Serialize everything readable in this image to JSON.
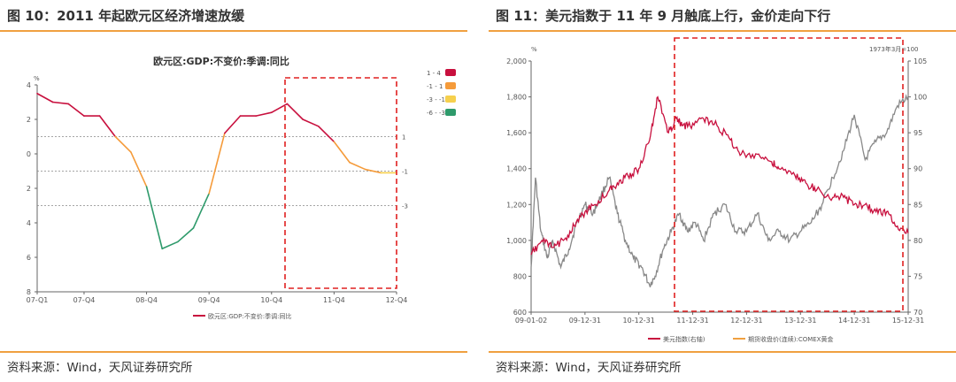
{
  "left": {
    "figure_title": "图 10：2011 年起欧元区经济增速放缓",
    "source": "资料来源：Wind，天风证券研究所",
    "chart_data": {
      "type": "line",
      "title": "欧元区:GDP:不变价:季调:同比",
      "ylabel": "%",
      "y_tick_labels": [
        "4",
        "2",
        "0",
        "2",
        "4",
        "6",
        "8"
      ],
      "ylim": [
        -8,
        4
      ],
      "x_tick_labels": [
        "07-Q1",
        "07-Q4",
        "08-Q4",
        "09-Q4",
        "10-Q4",
        "11-Q4",
        "12-Q4"
      ],
      "x_tick_quarters": [
        0,
        3,
        7,
        11,
        15,
        19,
        23
      ],
      "ref_lines": [
        {
          "value": 1,
          "label": "1"
        },
        {
          "value": -1,
          "label": "-1"
        },
        {
          "value": -3,
          "label": "-3"
        }
      ],
      "series": [
        {
          "name": "欧元区:GDP:不变价:季调:同比",
          "x": [
            0,
            1,
            2,
            3,
            4,
            5,
            6,
            7,
            8,
            9,
            10,
            11,
            12,
            13,
            14,
            15,
            16,
            17,
            18,
            19,
            20,
            21,
            22,
            23
          ],
          "values": [
            3.5,
            3.0,
            2.9,
            2.2,
            2.2,
            1.0,
            0.1,
            -1.9,
            -5.5,
            -5.1,
            -4.3,
            -2.3,
            1.2,
            2.2,
            2.2,
            2.4,
            2.9,
            2.0,
            1.6,
            0.7,
            -0.5,
            -0.9,
            -1.1,
            -1.1
          ]
        }
      ],
      "legend": [
        {
          "label": "1 - 4",
          "color": "#c8103e"
        },
        {
          "label": "-1 - 1",
          "color": "#f59b3a"
        },
        {
          "label": "-3 - -1",
          "color": "#f6d04d"
        },
        {
          "label": "-6 - -3",
          "color": "#2e9a6b"
        }
      ],
      "bottom_legend": "欧元区:GDP:不变价:季调:同比",
      "legend_position": "right"
    }
  },
  "right": {
    "figure_title": "图 11：美元指数于 11 年 9 月触底上行，金价走向下行",
    "source": "资料来源：Wind，天风证券研究所",
    "chart_data": {
      "type": "line",
      "ylabel_left": "%",
      "ylabel_right": "1973年3月=100",
      "y_left_ticks": [
        "2,000",
        "1,800",
        "1,600",
        "1,400",
        "1,200",
        "1,000",
        "800",
        "600"
      ],
      "y_right_ticks": [
        "105",
        "100",
        "95",
        "90",
        "85",
        "80",
        "75",
        "70"
      ],
      "ylim_left": [
        600,
        2000
      ],
      "ylim_right": [
        70,
        105
      ],
      "x_tick_labels": [
        "09-01-02",
        "09-12-31",
        "10-12-31",
        "11-12-31",
        "12-12-31",
        "13-12-31",
        "14-12-31",
        "15-12-31"
      ],
      "series": [
        {
          "name": "美元指数(右轴)",
          "color": "#c8103e",
          "axis": "right",
          "x": [
            2009.0,
            2009.2,
            2009.4,
            2009.6,
            2009.8,
            2010.0,
            2010.2,
            2010.45,
            2010.6,
            2010.8,
            2011.0,
            2011.2,
            2011.35,
            2011.55,
            2011.7,
            2011.8,
            2011.95,
            2012.2,
            2012.45,
            2012.7,
            2012.9,
            2013.2,
            2013.45,
            2013.6,
            2013.9,
            2014.1,
            2014.3,
            2014.6,
            2014.8,
            2015.0,
            2015.2,
            2015.4,
            2015.6,
            2015.8,
            2016.0
          ],
          "values": [
            78,
            80,
            79,
            80,
            82,
            84,
            85,
            87,
            88,
            89,
            90,
            94,
            100,
            95,
            97,
            96,
            96,
            97,
            96,
            94,
            92,
            92,
            91,
            90,
            89,
            88,
            87,
            86,
            86,
            85,
            85,
            84,
            84,
            82,
            81
          ]
        },
        {
          "name": "期货收盘价(连续):COMEX黄金",
          "color": "#888888",
          "axis": "left",
          "x": [
            2009.0,
            2009.08,
            2009.18,
            2009.3,
            2009.4,
            2009.55,
            2009.7,
            2009.85,
            2010.0,
            2010.15,
            2010.3,
            2010.45,
            2010.6,
            2010.75,
            2010.9,
            2011.05,
            2011.2,
            2011.3,
            2011.45,
            2011.6,
            2011.75,
            2011.9,
            2012.05,
            2012.2,
            2012.4,
            2012.6,
            2012.8,
            2013.0,
            2013.2,
            2013.4,
            2013.6,
            2013.8,
            2014.0,
            2014.2,
            2014.4,
            2014.6,
            2014.8,
            2015.0,
            2015.2,
            2015.4,
            2015.6,
            2015.8,
            2016.0
          ],
          "values": [
            850,
            1350,
            1050,
            900,
            1000,
            850,
            950,
            1100,
            1200,
            1150,
            1250,
            1350,
            1150,
            1000,
            900,
            850,
            750,
            800,
            950,
            1050,
            1150,
            1050,
            1100,
            1000,
            1150,
            1200,
            1050,
            1050,
            1150,
            1000,
            1050,
            1000,
            1050,
            1100,
            1200,
            1350,
            1500,
            1700,
            1450,
            1550,
            1600,
            1750,
            1800
          ]
        }
      ],
      "legend_position": "bottom"
    }
  }
}
